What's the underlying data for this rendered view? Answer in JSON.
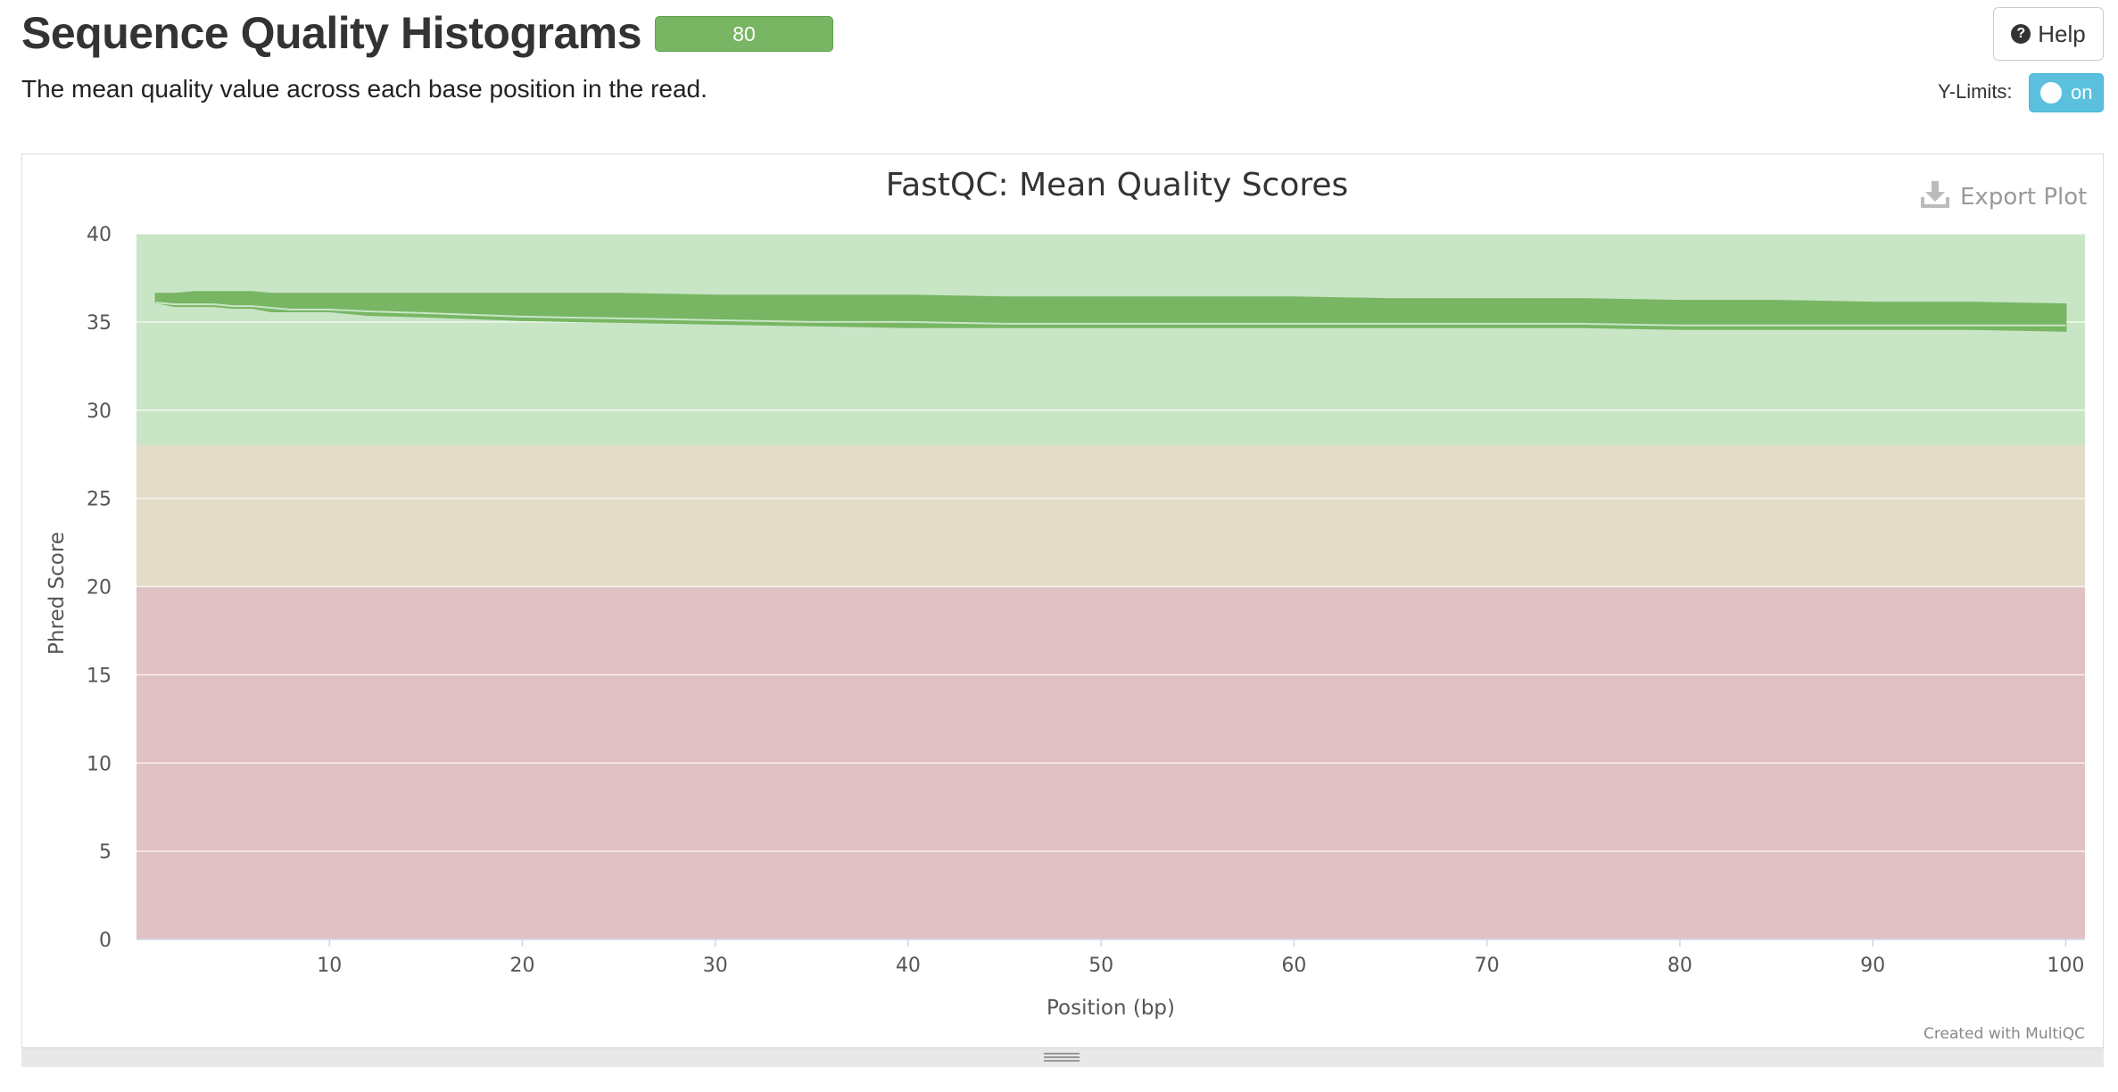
{
  "header": {
    "title": "Sequence Quality Histograms",
    "badge_count": "80",
    "description": "The mean quality value across each base position in the read.",
    "help_label": "Help",
    "help_icon": "question-circle-icon",
    "ylimits_label": "Y-Limits:",
    "ylimits_toggle": "on"
  },
  "plot": {
    "export_label": "Export Plot",
    "export_icon": "download-icon",
    "credit": "Created with MultiQC"
  },
  "chart_data": {
    "type": "line",
    "title": "FastQC: Mean Quality Scores",
    "xlabel": "Position (bp)",
    "ylabel": "Phred Score",
    "xlim": [
      0,
      101
    ],
    "ylim": [
      0,
      40
    ],
    "x_ticks": [
      10,
      20,
      30,
      40,
      50,
      60,
      70,
      80,
      90,
      100
    ],
    "y_ticks": [
      0,
      5,
      10,
      15,
      20,
      25,
      30,
      35,
      40
    ],
    "grid": true,
    "legend": "none",
    "series_count": 80,
    "bands": [
      {
        "from": 28,
        "to": 40,
        "color": "#c8e5c6"
      },
      {
        "from": 20,
        "to": 28,
        "color": "#e3dcc6"
      },
      {
        "from": 0,
        "to": 20,
        "color": "#e0c1c4"
      }
    ],
    "series_color": "#78b663",
    "x": [
      1,
      2,
      3,
      4,
      5,
      6,
      7,
      8,
      9,
      10,
      12,
      15,
      20,
      25,
      30,
      35,
      40,
      45,
      50,
      55,
      60,
      65,
      70,
      75,
      80,
      85,
      90,
      95,
      100
    ],
    "envelope_upper": [
      36.6,
      36.6,
      36.7,
      36.7,
      36.7,
      36.7,
      36.6,
      36.6,
      36.6,
      36.6,
      36.6,
      36.6,
      36.6,
      36.6,
      36.5,
      36.5,
      36.5,
      36.4,
      36.4,
      36.4,
      36.4,
      36.3,
      36.3,
      36.3,
      36.2,
      36.2,
      36.1,
      36.1,
      36.0
    ],
    "envelope_lower": [
      36.1,
      35.9,
      35.9,
      35.9,
      35.8,
      35.8,
      35.6,
      35.6,
      35.6,
      35.6,
      35.4,
      35.3,
      35.1,
      35.0,
      34.9,
      34.8,
      34.7,
      34.7,
      34.7,
      34.7,
      34.7,
      34.7,
      34.7,
      34.7,
      34.6,
      34.6,
      34.6,
      34.6,
      34.5
    ],
    "inner_line": [
      36.1,
      36.0,
      36.0,
      36.0,
      35.9,
      35.9,
      35.8,
      35.7,
      35.7,
      35.7,
      35.6,
      35.5,
      35.3,
      35.2,
      35.1,
      35.0,
      35.0,
      34.9,
      34.9,
      34.9,
      34.9,
      34.9,
      34.9,
      34.9,
      34.8,
      34.8,
      34.8,
      34.8,
      34.8
    ]
  }
}
